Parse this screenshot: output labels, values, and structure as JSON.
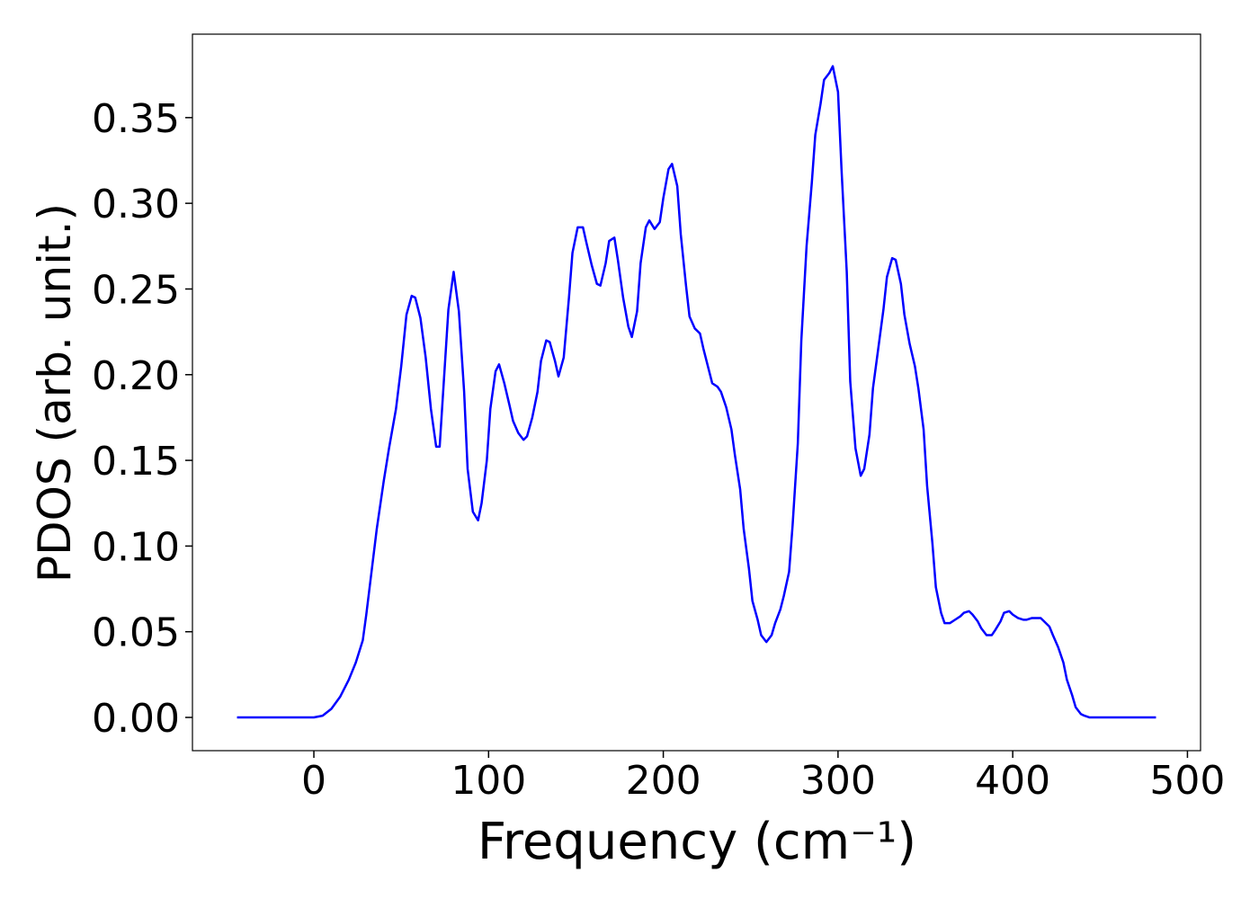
{
  "chart_data": {
    "type": "line",
    "xlabel": "Frequency (cm⁻¹)",
    "ylabel": "PDOS (arb. unit.)",
    "color": "#0000ff",
    "xlim": [
      -69.5,
      507.5
    ],
    "ylim": [
      -0.0194,
      0.3987
    ],
    "xticks": [
      0,
      100,
      200,
      300,
      400,
      500
    ],
    "yticks": [
      {
        "value": 0,
        "label": "0.00"
      },
      {
        "value": 0.05,
        "label": "0.05"
      },
      {
        "value": 0.1,
        "label": "0.10"
      },
      {
        "value": 0.15,
        "label": "0.15"
      },
      {
        "value": 0.2,
        "label": "0.20"
      },
      {
        "value": 0.25,
        "label": "0.25"
      },
      {
        "value": 0.3,
        "label": "0.30"
      },
      {
        "value": 0.35,
        "label": "0.35"
      }
    ],
    "x": [
      -44,
      0,
      5,
      10,
      15,
      20,
      24,
      28,
      30,
      33,
      36,
      40,
      43,
      47,
      50,
      53,
      56,
      58,
      61,
      64,
      67,
      70,
      72,
      74,
      77,
      80,
      83,
      86,
      88,
      91,
      94,
      96,
      99,
      101,
      104,
      106,
      109,
      112,
      114,
      117,
      120,
      122,
      125,
      128,
      130,
      133,
      135,
      138,
      140,
      143,
      146,
      148,
      151,
      154,
      156,
      159,
      162,
      164,
      167,
      169,
      172,
      174,
      177,
      180,
      182,
      185,
      187,
      190,
      192,
      195,
      198,
      200,
      203,
      205,
      208,
      210,
      213,
      215,
      218,
      221,
      223,
      226,
      228,
      231,
      233,
      236,
      239,
      241,
      244,
      246,
      249,
      251,
      254,
      256,
      259,
      262,
      264,
      267,
      269,
      272,
      274,
      277,
      279,
      282,
      285,
      287,
      290,
      292,
      295,
      297,
      300,
      302,
      305,
      307,
      310,
      313,
      315,
      318,
      320,
      323,
      326,
      328,
      331,
      333,
      336,
      338,
      341,
      344,
      346,
      349,
      351,
      354,
      356,
      359,
      361,
      364,
      367,
      370,
      372,
      375,
      377,
      380,
      382,
      385,
      388,
      390,
      393,
      395,
      398,
      400,
      403,
      406,
      408,
      411,
      413,
      416,
      418,
      421,
      423,
      426,
      429,
      431,
      434,
      436,
      439,
      441,
      444,
      482
    ],
    "values": [
      0,
      0,
      0.001,
      0.005,
      0.012,
      0.022,
      0.032,
      0.045,
      0.06,
      0.085,
      0.11,
      0.138,
      0.157,
      0.18,
      0.205,
      0.235,
      0.246,
      0.245,
      0.233,
      0.21,
      0.18,
      0.158,
      0.158,
      0.19,
      0.238,
      0.26,
      0.237,
      0.19,
      0.145,
      0.12,
      0.115,
      0.125,
      0.15,
      0.18,
      0.202,
      0.206,
      0.195,
      0.182,
      0.173,
      0.166,
      0.162,
      0.164,
      0.175,
      0.19,
      0.208,
      0.22,
      0.219,
      0.208,
      0.199,
      0.21,
      0.245,
      0.271,
      0.286,
      0.286,
      0.277,
      0.264,
      0.253,
      0.252,
      0.265,
      0.278,
      0.28,
      0.267,
      0.245,
      0.228,
      0.222,
      0.237,
      0.265,
      0.286,
      0.29,
      0.285,
      0.289,
      0.303,
      0.32,
      0.323,
      0.31,
      0.282,
      0.252,
      0.234,
      0.227,
      0.224,
      0.215,
      0.203,
      0.195,
      0.193,
      0.19,
      0.181,
      0.168,
      0.153,
      0.133,
      0.11,
      0.087,
      0.068,
      0.057,
      0.048,
      0.044,
      0.048,
      0.055,
      0.063,
      0.071,
      0.085,
      0.112,
      0.16,
      0.22,
      0.275,
      0.312,
      0.34,
      0.358,
      0.372,
      0.376,
      0.38,
      0.365,
      0.32,
      0.26,
      0.196,
      0.157,
      0.141,
      0.145,
      0.165,
      0.192,
      0.215,
      0.238,
      0.257,
      0.268,
      0.267,
      0.253,
      0.235,
      0.218,
      0.205,
      0.192,
      0.168,
      0.135,
      0.102,
      0.076,
      0.061,
      0.055,
      0.055,
      0.057,
      0.059,
      0.061,
      0.062,
      0.06,
      0.056,
      0.052,
      0.048,
      0.048,
      0.051,
      0.056,
      0.061,
      0.062,
      0.06,
      0.058,
      0.057,
      0.057,
      0.058,
      0.058,
      0.058,
      0.056,
      0.053,
      0.048,
      0.041,
      0.032,
      0.022,
      0.013,
      0.006,
      0.002,
      0.001,
      0,
      0
    ]
  }
}
